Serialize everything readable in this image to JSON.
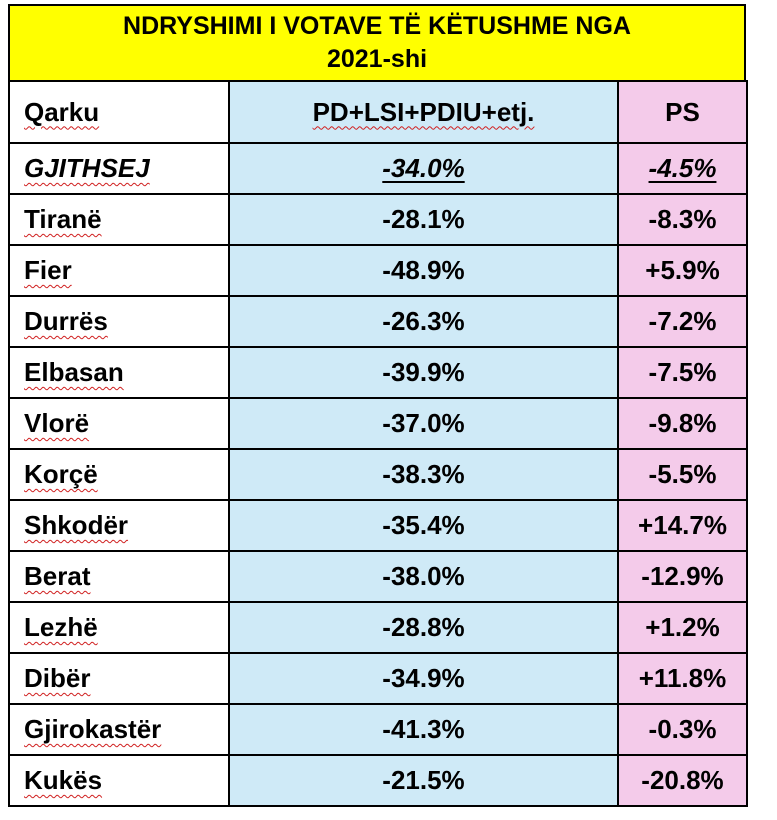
{
  "title": {
    "line1": "NDRYSHIMI I VOTAVE TË KËTUSHME NGA",
    "line2": "2021-shi"
  },
  "header": {
    "col1": "Qarku",
    "col2": "PD+LSI+PDIU+etj.",
    "col3": "PS"
  },
  "total": {
    "name": "GJITHSEJ",
    "pd": "-34.0%",
    "ps": "-4.5%"
  },
  "rows": [
    {
      "name": "Tiranë",
      "pd": "-28.1%",
      "ps": "-8.3%"
    },
    {
      "name": "Fier",
      "pd": "-48.9%",
      "ps": "+5.9%"
    },
    {
      "name": "Durrës",
      "pd": "-26.3%",
      "ps": "-7.2%"
    },
    {
      "name": "Elbasan",
      "pd": "-39.9%",
      "ps": "-7.5%"
    },
    {
      "name": "Vlorë",
      "pd": "-37.0%",
      "ps": "-9.8%"
    },
    {
      "name": "Korçë",
      "pd": "-38.3%",
      "ps": "-5.5%"
    },
    {
      "name": "Shkodër",
      "pd": "-35.4%",
      "ps": "+14.7%"
    },
    {
      "name": "Berat",
      "pd": "-38.0%",
      "ps": "-12.9%"
    },
    {
      "name": "Lezhë",
      "pd": "-28.8%",
      "ps": "+1.2%"
    },
    {
      "name": "Dibër",
      "pd": "-34.9%",
      "ps": "+11.8%"
    },
    {
      "name": "Gjirokastër",
      "pd": "-41.3%",
      "ps": "-0.3%"
    },
    {
      "name": "Kukës",
      "pd": "-21.5%",
      "ps": "-20.8%"
    }
  ],
  "colors": {
    "title_bg": "#ffff00",
    "pd_bg": "#cfeaf7",
    "ps_bg": "#f4cbea"
  }
}
